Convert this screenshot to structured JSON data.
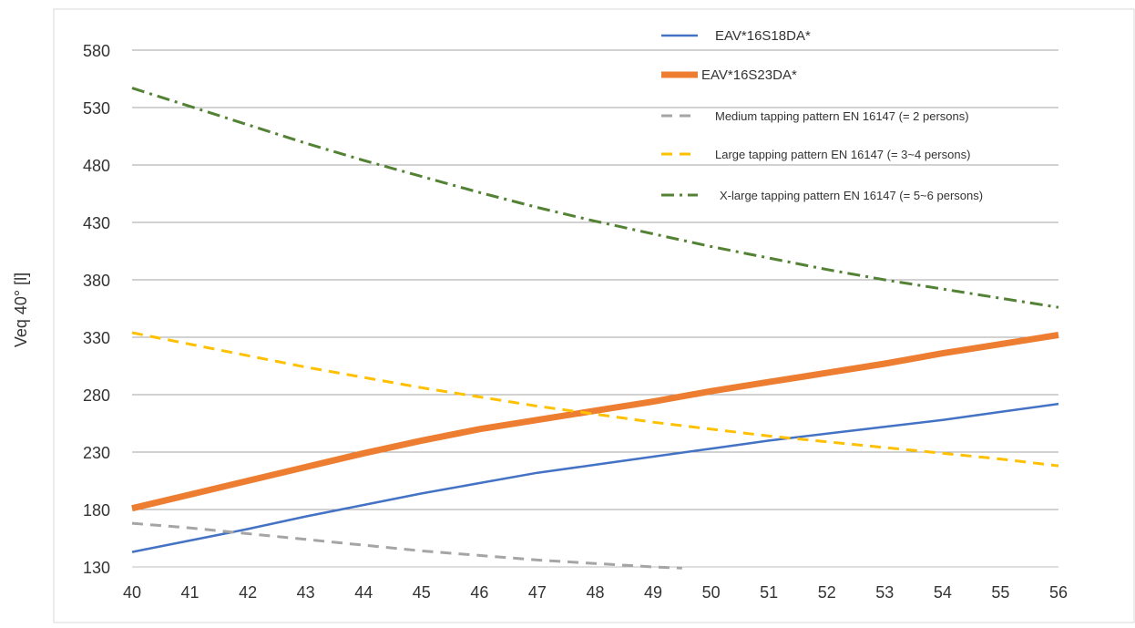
{
  "chart_data": {
    "type": "line",
    "title": "",
    "xlabel": "",
    "ylabel": "Veq 40° [l]",
    "xlim": [
      40,
      56
    ],
    "ylim": [
      130,
      580
    ],
    "x_ticks": [
      40,
      41,
      42,
      43,
      44,
      45,
      46,
      47,
      48,
      49,
      50,
      51,
      52,
      53,
      54,
      55,
      56
    ],
    "y_ticks": [
      130,
      180,
      230,
      280,
      330,
      380,
      430,
      480,
      530,
      580
    ],
    "grid": "horizontal",
    "legend_position": "top-right",
    "series": [
      {
        "name": "EAV*16S18DA*",
        "color": "#4472C4",
        "style": "solid",
        "x": [
          40,
          41,
          42,
          43,
          44,
          45,
          46,
          47,
          48,
          49,
          50,
          51,
          52,
          53,
          54,
          55,
          56
        ],
        "y": [
          143,
          153,
          163,
          174,
          184,
          194,
          203,
          212,
          219,
          226,
          233,
          240,
          246,
          252,
          258,
          265,
          272
        ]
      },
      {
        "name": "EAV*16S23DA*",
        "color": "#ED7D31",
        "style": "thick",
        "x": [
          40,
          41,
          42,
          43,
          44,
          45,
          46,
          47,
          48,
          49,
          50,
          51,
          52,
          53,
          54,
          55,
          56
        ],
        "y": [
          181,
          193,
          205,
          217,
          229,
          240,
          250,
          258,
          266,
          274,
          283,
          291,
          299,
          307,
          316,
          324,
          332
        ]
      },
      {
        "name": "Medium tapping pattern EN 16147 (= 2 persons)",
        "color": "#A5A5A5",
        "style": "dashed",
        "x": [
          40,
          41,
          42,
          43,
          44,
          45,
          46,
          47,
          48,
          49,
          49.5
        ],
        "y": [
          168,
          164,
          159,
          154,
          149,
          144,
          140,
          136,
          133,
          130,
          129
        ]
      },
      {
        "name": "Large tapping pattern EN 16147 (= 3~4 persons)",
        "color": "#FFC000",
        "style": "dashed",
        "x": [
          40,
          41,
          42,
          43,
          44,
          45,
          46,
          47,
          48,
          49,
          50,
          51,
          52,
          53,
          54,
          55,
          56
        ],
        "y": [
          334,
          324,
          314,
          304,
          295,
          286,
          278,
          270,
          263,
          256,
          250,
          244,
          239,
          234,
          229,
          224,
          218
        ]
      },
      {
        "name": "X-large tapping pattern EN 16147 (= 5~6 persons)",
        "color": "#548235",
        "style": "dashdot",
        "x": [
          40,
          41,
          42,
          43,
          44,
          45,
          46,
          47,
          48,
          49,
          50,
          51,
          52,
          53,
          54,
          55,
          56
        ],
        "y": [
          547,
          531,
          515,
          499,
          484,
          470,
          456,
          443,
          431,
          420,
          409,
          399,
          389,
          380,
          372,
          364,
          356
        ]
      }
    ]
  }
}
